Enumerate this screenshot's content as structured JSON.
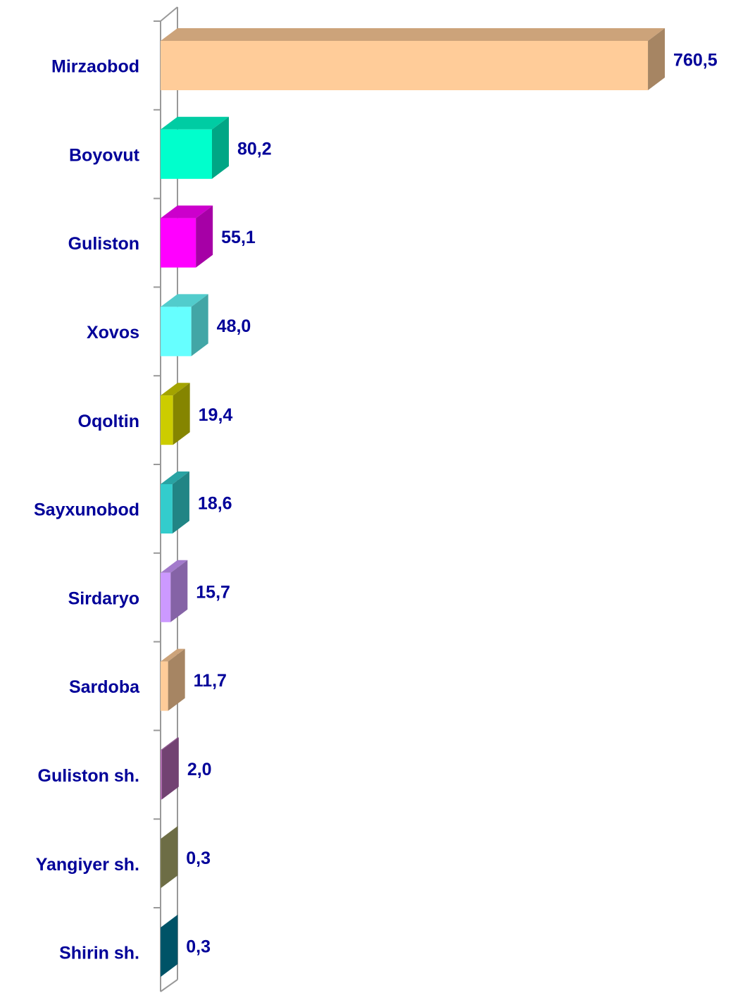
{
  "chart_data": {
    "type": "bar3d-horizontal",
    "categories": [
      "Mirzaobod",
      "Boyovut",
      "Guliston",
      "Xovos",
      "Oqoltin",
      "Sayxunobod",
      "Sirdaryo",
      "Sardoba",
      "Guliston sh.",
      "Yangiyer sh.",
      "Shirin sh."
    ],
    "values": [
      760.5,
      80.2,
      55.1,
      48.0,
      19.4,
      18.6,
      15.7,
      11.7,
      2.0,
      0.3,
      0.3
    ],
    "value_labels": [
      "760,5",
      "80,2",
      "55,1",
      "48,0",
      "19,4",
      "18,6",
      "15,7",
      "11,7",
      "2,0",
      "0,3",
      "0,3"
    ],
    "colors": [
      "#ffcc99",
      "#00ffcc",
      "#ff00ff",
      "#66ffff",
      "#cccc00",
      "#33cccc",
      "#cc99ff",
      "#ffcc99",
      "#b066b0",
      "#a8a86a",
      "#007f9f"
    ]
  }
}
